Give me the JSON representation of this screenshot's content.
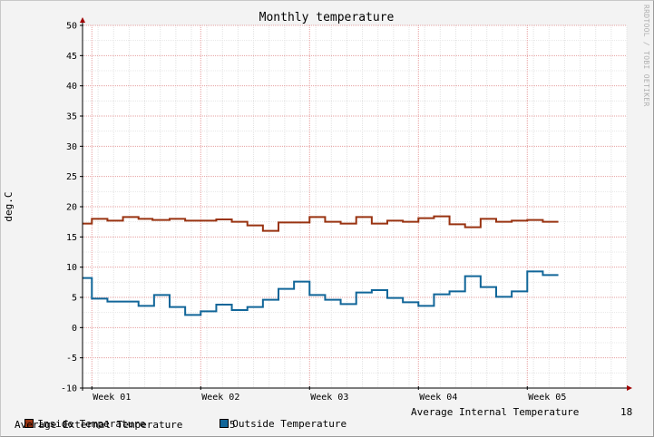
{
  "chart_data": {
    "type": "line",
    "title": "Monthly temperature",
    "ylabel": "deg.C",
    "watermark": "RRDTOOL / TOBI OETIKER",
    "ylim": [
      -10,
      50
    ],
    "yticks": [
      -10,
      -5,
      0,
      5,
      10,
      15,
      20,
      25,
      30,
      35,
      40,
      45,
      50
    ],
    "xlim": [
      0,
      35
    ],
    "xticks": [
      {
        "x": 0.6,
        "label": "Week 01"
      },
      {
        "x": 7.6,
        "label": "Week 02"
      },
      {
        "x": 14.6,
        "label": "Week 03"
      },
      {
        "x": 21.6,
        "label": "Week 04"
      },
      {
        "x": 28.6,
        "label": "Week 05"
      }
    ],
    "grid": true,
    "series": [
      {
        "name": "Inside Temperature",
        "color": "#993311",
        "steps": [
          [
            0,
            17.2
          ],
          [
            0.6,
            18.0
          ],
          [
            1.6,
            17.7
          ],
          [
            2.6,
            18.3
          ],
          [
            3.6,
            18.0
          ],
          [
            4.5,
            17.8
          ],
          [
            5.6,
            18.0
          ],
          [
            6.6,
            17.7
          ],
          [
            8.6,
            17.9
          ],
          [
            9.6,
            17.5
          ],
          [
            10.6,
            16.9
          ],
          [
            11.6,
            16.0
          ],
          [
            12.6,
            17.4
          ],
          [
            14.6,
            18.3
          ],
          [
            15.6,
            17.5
          ],
          [
            16.6,
            17.2
          ],
          [
            17.6,
            18.3
          ],
          [
            18.6,
            17.2
          ],
          [
            19.6,
            17.7
          ],
          [
            20.6,
            17.5
          ],
          [
            21.6,
            18.1
          ],
          [
            22.6,
            18.4
          ],
          [
            23.6,
            17.1
          ],
          [
            24.6,
            16.6
          ],
          [
            25.6,
            18.0
          ],
          [
            26.6,
            17.5
          ],
          [
            27.6,
            17.7
          ],
          [
            28.6,
            17.8
          ],
          [
            29.6,
            17.5
          ],
          [
            30.6,
            17.5
          ]
        ]
      },
      {
        "name": "Outside Temperature",
        "color": "#116699",
        "steps": [
          [
            0,
            8.2
          ],
          [
            0.6,
            4.8
          ],
          [
            1.6,
            4.3
          ],
          [
            3.6,
            3.6
          ],
          [
            4.6,
            5.4
          ],
          [
            5.6,
            3.4
          ],
          [
            6.6,
            2.1
          ],
          [
            7.6,
            2.7
          ],
          [
            8.6,
            3.8
          ],
          [
            9.6,
            2.9
          ],
          [
            10.6,
            3.4
          ],
          [
            11.6,
            4.6
          ],
          [
            12.6,
            6.4
          ],
          [
            13.6,
            7.6
          ],
          [
            14.6,
            5.4
          ],
          [
            15.6,
            4.6
          ],
          [
            16.6,
            3.9
          ],
          [
            17.6,
            5.8
          ],
          [
            18.6,
            6.2
          ],
          [
            19.6,
            4.9
          ],
          [
            20.6,
            4.2
          ],
          [
            21.6,
            3.6
          ],
          [
            22.6,
            5.5
          ],
          [
            23.6,
            6.0
          ],
          [
            24.6,
            8.5
          ],
          [
            25.6,
            6.7
          ],
          [
            26.6,
            5.1
          ],
          [
            27.6,
            6.0
          ],
          [
            28.6,
            9.3
          ],
          [
            29.6,
            8.7
          ],
          [
            30.6,
            8.7
          ]
        ]
      }
    ],
    "summary": [
      {
        "label": "Average Internal Temperature",
        "value": "18"
      },
      {
        "label": "Average External Temperature",
        "value": "5"
      }
    ]
  }
}
